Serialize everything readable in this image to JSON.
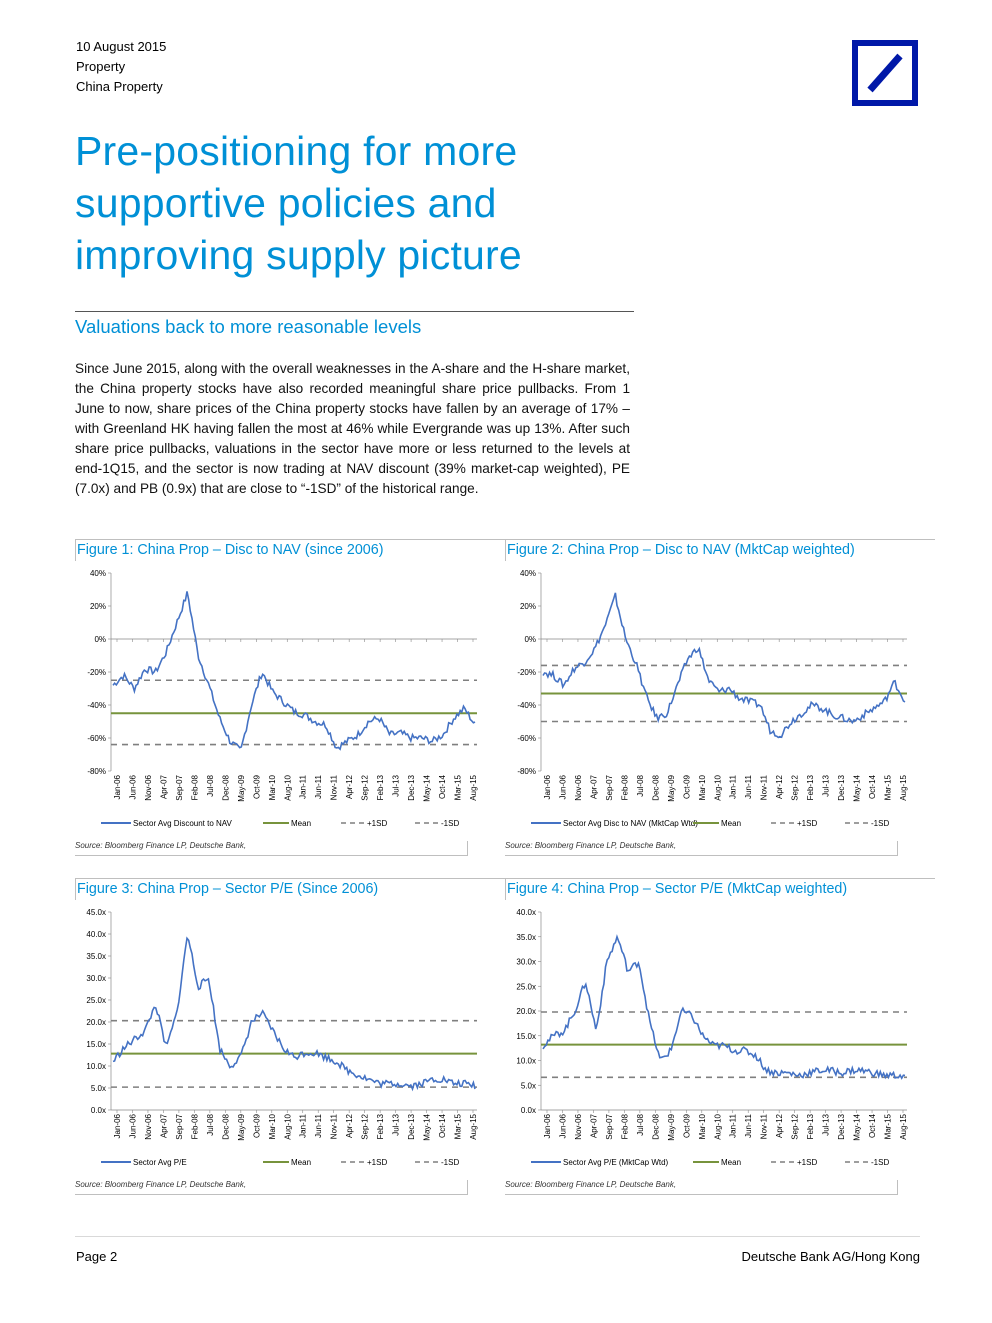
{
  "header": {
    "date": "10 August 2015",
    "sector": "Property",
    "subsector": "China Property"
  },
  "title": "Pre-positioning for more supportive policies and improving supply picture",
  "subheading": "Valuations back to more reasonable levels",
  "body_text": "Since June 2015, along with the overall weaknesses in the A-share and the H-share market, the China property stocks have also recorded meaningful share price pullbacks. From 1 June to now, share prices of the China property stocks have fallen by an average of 17% – with Greenland HK having fallen the most at 46% while Evergrande was up 13%. After such share price pullbacks, valuations in the sector have more or less returned to the levels at end-1Q15, and the sector is now trading at NAV discount (39% market-cap weighted), PE (7.0x) and PB (0.9x) that are close to “-1SD” of the historical range.",
  "footer": {
    "page": "Page 2",
    "company": "Deutsche Bank AG/Hong Kong"
  },
  "colors": {
    "accent": "#0090d6",
    "series": "#4472c4",
    "mean": "#77933c",
    "sd": "#7f7f7f",
    "logo": "#0018a8"
  },
  "chart_data": [
    {
      "type": "line",
      "title": "Figure 1: China Prop – Disc to NAV (since 2006)",
      "source": "Source: Bloomberg Finance LP, Deutsche Bank,",
      "categories": [
        "Jan-06",
        "Jun-06",
        "Nov-06",
        "Apr-07",
        "Sep-07",
        "Feb-08",
        "Jul-08",
        "Dec-08",
        "May-09",
        "Oct-09",
        "Mar-10",
        "Aug-10",
        "Jan-11",
        "Jun-11",
        "Nov-11",
        "Apr-12",
        "Sep-12",
        "Feb-13",
        "Jul-13",
        "Dec-13",
        "May-14",
        "Oct-14",
        "Mar-15",
        "Aug-15"
      ],
      "yticks": [
        "40%",
        "20%",
        "0%",
        "-20%",
        "-40%",
        "-60%",
        "-80%"
      ],
      "ylim": [
        -80,
        40
      ],
      "series_values": [
        -28,
        -22,
        -30,
        -18,
        -20,
        -8,
        10,
        28,
        -10,
        -28,
        -48,
        -62,
        -68,
        -40,
        -20,
        -32,
        -38,
        -44,
        -46,
        -50,
        -52,
        -66,
        -62,
        -58,
        -50,
        -48,
        -58,
        -57,
        -60,
        -60,
        -62,
        -58,
        -48,
        -42,
        -52
      ],
      "mean": -45,
      "plus1sd": -25,
      "minus1sd": -64,
      "legend": [
        "Sector Avg Discount to NAV",
        "Mean",
        "+1SD",
        "-1SD"
      ]
    },
    {
      "type": "line",
      "title": "Figure 2: China Prop – Disc to NAV (MktCap weighted)",
      "source": "Source: Bloomberg Finance LP, Deutsche Bank,",
      "categories": [
        "Jan-06",
        "Jun-06",
        "Nov-06",
        "Apr-07",
        "Sep-07",
        "Feb-08",
        "Jul-08",
        "Dec-08",
        "May-09",
        "Oct-09",
        "Mar-10",
        "Aug-10",
        "Jan-11",
        "Jun-11",
        "Nov-11",
        "Apr-12",
        "Sep-12",
        "Feb-13",
        "Jul-13",
        "Dec-13",
        "May-14",
        "Oct-14",
        "Mar-15",
        "Aug-15"
      ],
      "yticks": [
        "40%",
        "20%",
        "0%",
        "-20%",
        "-40%",
        "-60%",
        "-80%"
      ],
      "ylim": [
        -80,
        40
      ],
      "series_values": [
        -20,
        -22,
        -28,
        -18,
        -14,
        -6,
        8,
        26,
        0,
        -15,
        -35,
        -48,
        -45,
        -28,
        -12,
        -5,
        -25,
        -32,
        -30,
        -36,
        -38,
        -40,
        -56,
        -58,
        -50,
        -45,
        -40,
        -42,
        -46,
        -48,
        -50,
        -46,
        -42,
        -38,
        -26,
        -38
      ],
      "mean": -33,
      "plus1sd": -16,
      "minus1sd": -50,
      "legend": [
        "Sector Avg Disc to NAV (MktCap Wtd)",
        "Mean",
        "+1SD",
        "-1SD"
      ]
    },
    {
      "type": "line",
      "title": "Figure 3: China Prop – Sector P/E (Since 2006)",
      "source": "Source: Bloomberg Finance LP, Deutsche Bank,",
      "categories": [
        "Jan-06",
        "Jun-06",
        "Nov-06",
        "Apr-07",
        "Sep-07",
        "Feb-08",
        "Jul-08",
        "Dec-08",
        "May-09",
        "Oct-09",
        "Mar-10",
        "Aug-10",
        "Jan-11",
        "Jun-11",
        "Nov-11",
        "Apr-12",
        "Sep-12",
        "Feb-13",
        "Jul-13",
        "Dec-13",
        "May-14",
        "Oct-14",
        "Mar-15",
        "Aug-15"
      ],
      "yticks": [
        "45.0x",
        "40.0x",
        "35.0x",
        "30.0x",
        "25.0x",
        "20.0x",
        "15.0x",
        "10.0x",
        "5.0x",
        "0.0x"
      ],
      "ylim": [
        0,
        45
      ],
      "series_values": [
        11,
        14,
        16,
        18,
        24,
        14,
        22,
        40,
        28,
        30,
        14,
        10,
        12,
        20,
        22,
        18,
        14,
        12,
        13,
        13,
        12,
        11,
        9,
        8,
        7,
        6,
        6,
        6,
        5.5,
        6,
        7,
        7,
        6,
        6,
        5.5
      ],
      "mean": 12.8,
      "plus1sd": 20.3,
      "minus1sd": 5.2,
      "legend": [
        "Sector Avg P/E",
        "Mean",
        "+1SD",
        "-1SD"
      ]
    },
    {
      "type": "line",
      "title": "Figure 4: China Prop – Sector P/E (MktCap weighted)",
      "source": "Source: Bloomberg Finance LP, Deutsche Bank,",
      "categories": [
        "Jan-06",
        "Jun-06",
        "Nov-06",
        "Apr-07",
        "Sep-07",
        "Feb-08",
        "Jul-08",
        "Dec-08",
        "May-09",
        "Oct-09",
        "Mar-10",
        "Aug-10",
        "Jan-11",
        "Jun-11",
        "Nov-11",
        "Apr-12",
        "Sep-12",
        "Feb-13",
        "Jul-13",
        "Dec-13",
        "May-14",
        "Oct-14",
        "Mar-15",
        "Aug-15"
      ],
      "yticks": [
        "40.0x",
        "35.0x",
        "30.0x",
        "25.0x",
        "20.0x",
        "15.0x",
        "10.0x",
        "5.0x",
        "0.0x"
      ],
      "ylim": [
        0,
        40
      ],
      "series_values": [
        13,
        15,
        16,
        20,
        26,
        16,
        30,
        35,
        28,
        30,
        18,
        10,
        12,
        20,
        19,
        15,
        13,
        13,
        12,
        12,
        11,
        8,
        7.5,
        7.5,
        7,
        7.5,
        8,
        8,
        7.5,
        8,
        8,
        7.5,
        7,
        7,
        6.8
      ],
      "mean": 13.2,
      "plus1sd": 19.8,
      "minus1sd": 6.6,
      "legend": [
        "Sector Avg P/E (MktCap Wtd)",
        "Mean",
        "+1SD",
        "-1SD"
      ]
    }
  ]
}
